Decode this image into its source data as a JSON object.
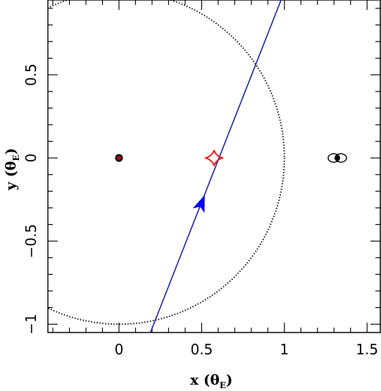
{
  "chart_data": {
    "type": "line",
    "xlabel": "x (θ",
    "xlabel_unit": "E",
    "xlabel_close": ")",
    "ylabel": "y (θ",
    "ylabel_unit": "E",
    "ylabel_close": ")",
    "xlim": [
      -0.43,
      1.58
    ],
    "ylim": [
      -1.05,
      0.95
    ],
    "x_ticks": [
      0,
      0.5,
      1,
      1.5
    ],
    "x_tick_labels": [
      "0",
      "0.5",
      "1",
      "1.5"
    ],
    "y_ticks": [
      -1,
      -0.5,
      0,
      0.5
    ],
    "y_tick_labels": [
      "−1",
      "−0.5",
      "0",
      "0.5"
    ],
    "grid": false,
    "einstein_ring": {
      "center": [
        0,
        0
      ],
      "radius": 1,
      "style": "dotted",
      "color": "#000000"
    },
    "trajectory": {
      "points": [
        [
          0.19,
          -1.05
        ],
        [
          0.98,
          0.95
        ]
      ],
      "color": "#1a1aa0"
    },
    "trajectory_arrow": {
      "x": 0.5,
      "y": -0.27,
      "color": "#0000ff"
    },
    "caustic": {
      "center": [
        0.575,
        0
      ],
      "half_width": 0.055,
      "half_height": 0.03,
      "color": "#ff0000"
    },
    "lens_left": {
      "x": 0,
      "y": 0,
      "color": "#cc0000"
    },
    "lens_right": {
      "x": 1.32,
      "y": 0,
      "color": "#000000"
    }
  }
}
